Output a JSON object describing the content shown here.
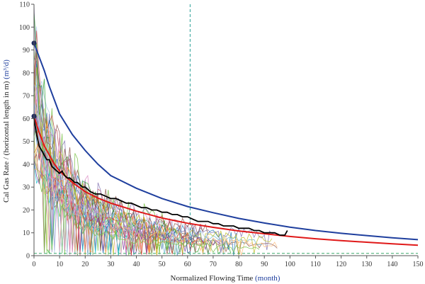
{
  "colors": {
    "upper_fit": "#1f3f9e",
    "mean_fit": "#e01919",
    "average": "#000000",
    "vertical_marker": "#2aa198",
    "horizontal_marker": "#3aa96b",
    "unit_text": "#1f3f9e",
    "points": "#1f2a5e",
    "well_palette": [
      "#7a3e9d",
      "#1f77b4",
      "#2ca02c",
      "#ff7f0e",
      "#d62728",
      "#17becf",
      "#bcbd22",
      "#8c564b",
      "#e377c2",
      "#9467bd",
      "#aec7e8",
      "#98df8a",
      "#ffbb78",
      "#c5b0d5",
      "#f7b6d2",
      "#76c043",
      "#4c72b0",
      "#dd8452",
      "#55a868",
      "#c44e52",
      "#8172b2",
      "#937860",
      "#da8bc3",
      "#64b5cd"
    ]
  },
  "chart_data": {
    "type": "line",
    "xlabel": "Normalized Flowing Time",
    "xlabel_unit": "(month)",
    "ylabel": "Cal Gas Rate / (horizontal length in m)",
    "ylabel_unit": "(m³/d)",
    "xlim": [
      0,
      150
    ],
    "ylim": [
      0,
      110
    ],
    "xticks": [
      0,
      10,
      20,
      30,
      40,
      50,
      60,
      70,
      80,
      90,
      100,
      110,
      120,
      130,
      140,
      150
    ],
    "yticks": [
      0,
      10,
      20,
      30,
      40,
      50,
      60,
      70,
      80,
      90,
      100,
      110
    ],
    "xtick_labels": [
      "0",
      "10",
      "20",
      "30",
      "40",
      "50",
      "60",
      "70",
      "80",
      "90",
      "100",
      "110",
      "120",
      "130",
      "140",
      "150"
    ],
    "ytick_labels": [
      "0",
      "10",
      "20",
      "30",
      "40",
      "50",
      "60",
      "70",
      "80",
      "90",
      "100",
      "110"
    ],
    "grid": false,
    "fit_curves": [
      {
        "id": "upper",
        "color": "#1f3f9e",
        "x": [
          0,
          2,
          4,
          6,
          8,
          10,
          15,
          20,
          25,
          30,
          40,
          50,
          60,
          70,
          80,
          90,
          100,
          110,
          120,
          130,
          140,
          150
        ],
        "values": [
          93,
          87,
          81,
          74,
          68,
          62,
          53,
          46,
          40,
          35,
          29.5,
          25,
          21.5,
          18.8,
          16.3,
          14.3,
          12.5,
          11,
          9.8,
          8.8,
          7.8,
          7
        ]
      },
      {
        "id": "mean",
        "color": "#e01919",
        "x": [
          0,
          2,
          4,
          6,
          8,
          10,
          15,
          20,
          25,
          30,
          40,
          50,
          60,
          70,
          80,
          90,
          100,
          110,
          120,
          130,
          140,
          150
        ],
        "values": [
          61,
          54,
          48,
          44,
          40,
          37,
          32,
          28,
          25.2,
          23,
          19.5,
          16.5,
          14.2,
          12.4,
          10.8,
          9.6,
          8.4,
          7.4,
          6.6,
          5.9,
          5.2,
          4.6
        ]
      }
    ],
    "average_series": {
      "name": "average",
      "color": "#000000",
      "x": [
        0,
        1,
        2,
        3,
        4,
        5,
        6,
        7,
        8,
        9,
        10,
        11,
        12,
        13,
        14,
        15,
        16,
        17,
        18,
        19,
        20,
        22,
        24,
        26,
        28,
        30,
        32,
        34,
        36,
        38,
        40,
        42,
        44,
        46,
        48,
        50,
        52,
        54,
        56,
        58,
        60,
        62,
        64,
        66,
        68,
        70,
        72,
        74,
        76,
        78,
        80,
        82,
        84,
        86,
        88,
        90,
        92,
        94,
        96,
        98,
        99
      ],
      "values": [
        60,
        53,
        48,
        46,
        44,
        42,
        42,
        39,
        38,
        37,
        36,
        37,
        35,
        34,
        34,
        33,
        32,
        32,
        31,
        30,
        30,
        28,
        27,
        27,
        26,
        25,
        25,
        24,
        23,
        23,
        22,
        21,
        21,
        20,
        20,
        19,
        19,
        18,
        18,
        17,
        17,
        16,
        15,
        15,
        15,
        14,
        14,
        13,
        13,
        13,
        12,
        12,
        12,
        11,
        11,
        10,
        10,
        10,
        9,
        9,
        11
      ]
    },
    "initial_points": [
      {
        "x": 0,
        "y": 93
      },
      {
        "x": 0,
        "y": 61
      }
    ],
    "vertical_marker_x": 61,
    "horizontal_marker_y": 1
  }
}
